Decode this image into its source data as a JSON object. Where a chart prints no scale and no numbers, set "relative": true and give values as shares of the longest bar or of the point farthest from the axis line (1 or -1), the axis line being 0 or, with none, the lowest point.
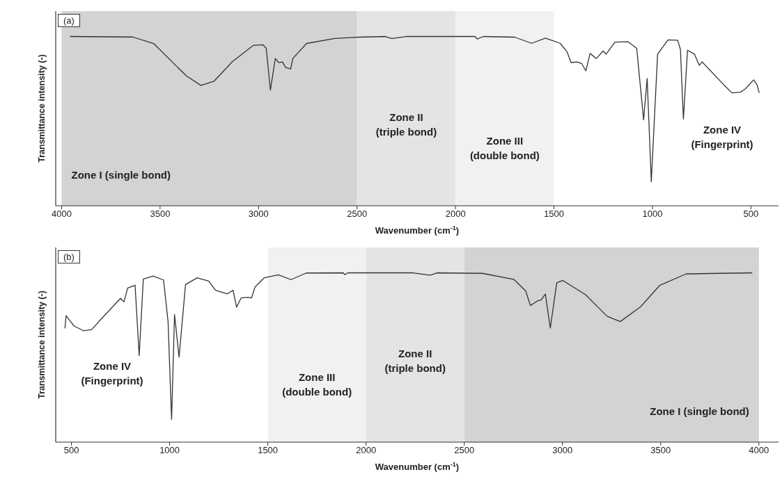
{
  "chart_data": [
    {
      "type": "line",
      "title": "(a)",
      "xlabel": "Wavenumber (cm$^{-1}$)",
      "ylabel": "Transmittance intensity (-)",
      "relative": true,
      "xlim": [
        4030,
        360
      ],
      "xticks": [
        4000,
        3500,
        3000,
        2500,
        2000,
        1500,
        1000,
        500
      ],
      "bands": [
        {
          "axis": "x",
          "from": 4000,
          "to": 2500,
          "label": "Zone I (single bond)",
          "color": "#d3d3d3"
        },
        {
          "axis": "x",
          "from": 2500,
          "to": 2000,
          "label": "Zone II\n(triple bond)",
          "color": "#e4e4e4"
        },
        {
          "axis": "x",
          "from": 2000,
          "to": 1500,
          "label": "Zone III\n(double bond)",
          "color": "#f1f1f1"
        }
      ],
      "annotations": [
        "Zone IV\n(Fingerprint)"
      ],
      "series": [
        {
          "color": "#333333",
          "x": [
            3958,
            3639,
            3533,
            3417,
            3367,
            3293,
            3226,
            3134,
            3028,
            2978,
            2961,
            2940,
            2915,
            2897,
            2879,
            2862,
            2837,
            2826,
            2756,
            2614,
            2498,
            2356,
            2324,
            2250,
            1999,
            1900,
            1890,
            1858,
            1699,
            1614,
            1543,
            1469,
            1434,
            1413,
            1384,
            1359,
            1338,
            1317,
            1285,
            1250,
            1236,
            1190,
            1126,
            1080,
            1045,
            1027,
            1006,
            974,
            921,
            872,
            858,
            843,
            822,
            787,
            762,
            748,
            638,
            596,
            554,
            529,
            486,
            469,
            458
          ],
          "values": [
            1.0,
            0.997,
            0.959,
            0.825,
            0.768,
            0.711,
            0.736,
            0.85,
            0.947,
            0.951,
            0.93,
            0.683,
            0.87,
            0.846,
            0.85,
            0.817,
            0.809,
            0.87,
            0.959,
            0.988,
            0.996,
            1.0,
            0.988,
            1.0,
            1.0,
            1.0,
            0.985,
            1.0,
            0.996,
            0.96,
            0.99,
            0.96,
            0.91,
            0.846,
            0.85,
            0.84,
            0.797,
            0.9,
            0.87,
            0.915,
            0.896,
            0.967,
            0.97,
            0.93,
            0.508,
            0.752,
            0.142,
            0.896,
            0.98,
            0.978,
            0.923,
            0.512,
            0.919,
            0.896,
            0.83,
            0.85,
            0.715,
            0.667,
            0.671,
            0.69,
            0.744,
            0.715,
            0.667
          ]
        }
      ]
    },
    {
      "type": "line",
      "title": "(b)",
      "xlabel": "Wavenumber (cm$^{-1}$)",
      "ylabel": "Transmittance intensity (-)",
      "relative": true,
      "xlim": [
        420,
        4100
      ],
      "xticks": [
        500,
        1000,
        1500,
        2000,
        2500,
        3000,
        3500,
        4000
      ],
      "bands": [
        {
          "axis": "x",
          "from": 4000,
          "to": 2500,
          "label": "Zone I (single bond)",
          "color": "#d3d3d3"
        },
        {
          "axis": "x",
          "from": 2500,
          "to": 2000,
          "label": "Zone II\n(triple bond)",
          "color": "#e4e4e4"
        },
        {
          "axis": "x",
          "from": 2000,
          "to": 1500,
          "label": "Zone III\n(double bond)",
          "color": "#f1f1f1"
        }
      ],
      "annotations": [
        "Zone IV\n(Fingerprint)"
      ],
      "series": [
        {
          "color": "#333333",
          "x": [
            467,
            473,
            490,
            514,
            561,
            603,
            656,
            750,
            768,
            786,
            824,
            845,
            866,
            916,
            969,
            992,
            1010,
            1025,
            1048,
            1081,
            1140,
            1199,
            1234,
            1293,
            1323,
            1341,
            1364,
            1400,
            1417,
            1435,
            1482,
            1553,
            1618,
            1695,
            1884,
            1892,
            1907,
            2240,
            2325,
            2362,
            2593,
            2752,
            2813,
            2837,
            2874,
            2892,
            2913,
            2938,
            2971,
            3002,
            3118,
            3227,
            3294,
            3398,
            3496,
            3630,
            3966
          ],
          "values": [
            0.672,
            0.747,
            0.72,
            0.686,
            0.658,
            0.665,
            0.733,
            0.849,
            0.829,
            0.91,
            0.927,
            0.511,
            0.964,
            0.981,
            0.958,
            0.713,
            0.135,
            0.754,
            0.502,
            0.931,
            0.971,
            0.951,
            0.897,
            0.876,
            0.897,
            0.797,
            0.852,
            0.856,
            0.852,
            0.917,
            0.971,
            0.988,
            0.96,
            0.999,
            1.0,
            0.989,
            1.0,
            1.0,
            0.986,
            1.0,
            0.997,
            0.962,
            0.892,
            0.807,
            0.835,
            0.84,
            0.875,
            0.674,
            0.941,
            0.955,
            0.871,
            0.744,
            0.712,
            0.8,
            0.927,
            0.994,
            1.0
          ]
        }
      ]
    }
  ]
}
